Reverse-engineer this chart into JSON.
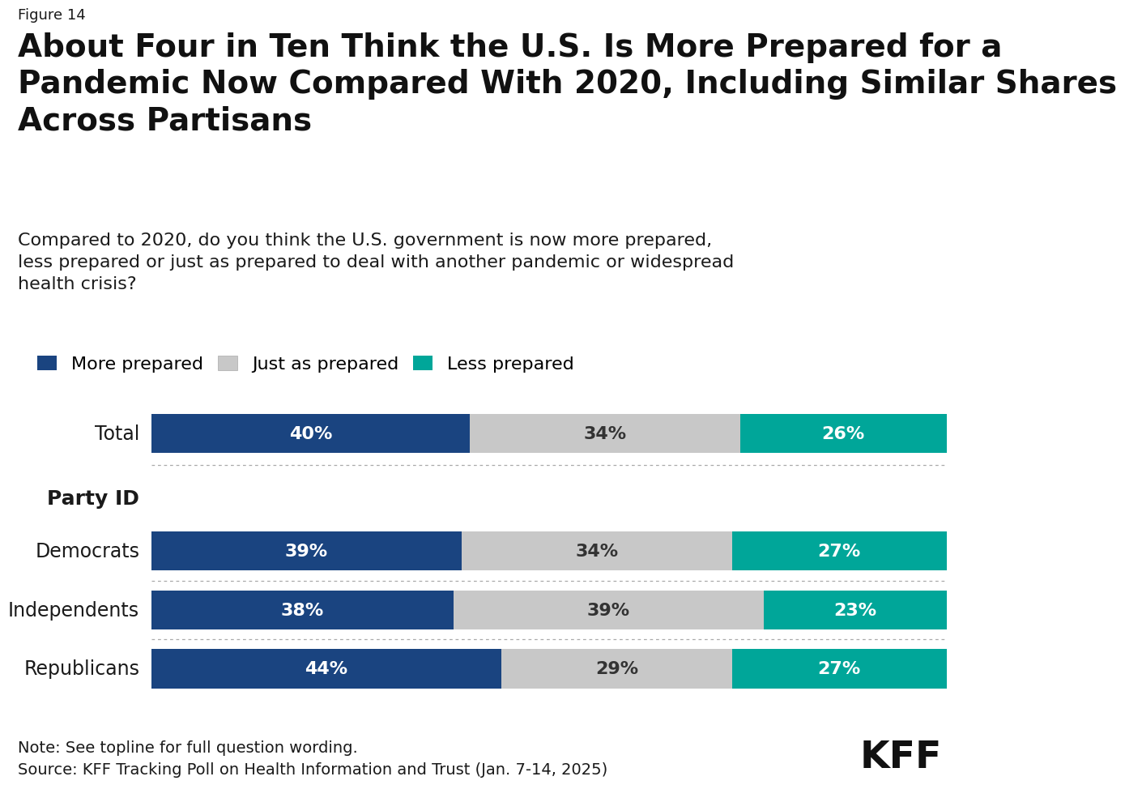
{
  "figure_label": "Figure 14",
  "title": "About Four in Ten Think the U.S. Is More Prepared for a\nPandemic Now Compared With 2020, Including Similar Shares\nAcross Partisans",
  "subtitle": "Compared to 2020, do you think the U.S. government is now more prepared,\nless prepared or just as prepared to deal with another pandemic or widespread\nhealth crisis?",
  "categories": [
    "Total",
    "Democrats",
    "Independents",
    "Republicans"
  ],
  "more_prepared": [
    40,
    39,
    38,
    44
  ],
  "just_as_prepared": [
    34,
    34,
    39,
    29
  ],
  "less_prepared": [
    26,
    27,
    23,
    27
  ],
  "colors": {
    "more_prepared": "#1a4480",
    "just_as_prepared": "#c8c8c8",
    "less_prepared": "#00a699"
  },
  "legend_labels": [
    "More prepared",
    "Just as prepared",
    "Less prepared"
  ],
  "note": "Note: See topline for full question wording.",
  "source": "Source: KFF Tracking Poll on Health Information and Trust (Jan. 7-14, 2025)",
  "bar_height": 0.6,
  "background_color": "#ffffff",
  "text_color": "#1a1a1a",
  "label_fontsize": 17,
  "value_fontsize": 16,
  "title_fontsize": 28,
  "subtitle_fontsize": 16,
  "legend_fontsize": 16,
  "note_fontsize": 14,
  "figure_label_fontsize": 13
}
